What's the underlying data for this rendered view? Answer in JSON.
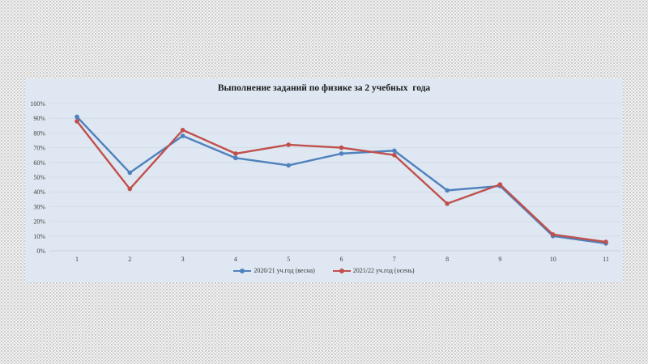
{
  "chart_data": {
    "type": "line",
    "title": "Выполнение заданий по физике за 2 учебных  года",
    "xlabel": "",
    "ylabel": "",
    "categories": [
      "1",
      "2",
      "3",
      "4",
      "5",
      "6",
      "7",
      "8",
      "9",
      "10",
      "11"
    ],
    "y_ticks": [
      "0%",
      "10%",
      "20%",
      "30%",
      "40%",
      "50%",
      "60%",
      "70%",
      "80%",
      "90%",
      "100%"
    ],
    "ylim": [
      0,
      100
    ],
    "grid": true,
    "legend_position": "bottom",
    "series": [
      {
        "name": "2020/21 уч.год (весна)",
        "color": "#4f81bd",
        "values": [
          91,
          53,
          78,
          63,
          58,
          66,
          68,
          41,
          44,
          10,
          5
        ]
      },
      {
        "name": "2021/22 уч.год (осень)",
        "color": "#c0504d",
        "values": [
          88,
          42,
          82,
          66,
          72,
          70,
          65,
          32,
          45,
          11,
          6
        ]
      }
    ]
  }
}
